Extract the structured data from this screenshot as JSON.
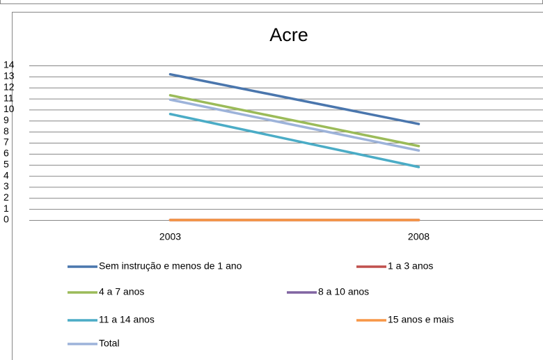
{
  "chart_data": {
    "type": "line",
    "title": "Acre",
    "categories": [
      "2003",
      "2008"
    ],
    "series": [
      {
        "name": "Sem instrução e menos de 1 ano",
        "color": "#4a76ad",
        "values": [
          13.2,
          8.7
        ]
      },
      {
        "name": "1 a 3 anos",
        "color": "#c0504d",
        "values": [
          0,
          0
        ]
      },
      {
        "name": "4 a 7 anos",
        "color": "#9bbb59",
        "values": [
          11.3,
          6.7
        ]
      },
      {
        "name": "8 a 10 anos",
        "color": "#8064a2",
        "values": [
          0,
          0
        ]
      },
      {
        "name": "11 a 14 anos",
        "color": "#4bacc6",
        "values": [
          9.6,
          4.8
        ]
      },
      {
        "name": "15 anos e mais",
        "color": "#f79646",
        "values": [
          0,
          0
        ]
      },
      {
        "name": "Total",
        "color": "#9db3da",
        "values": [
          10.9,
          6.3
        ]
      }
    ],
    "ylim": [
      0,
      14
    ],
    "yticks": [
      0,
      1,
      2,
      3,
      4,
      5,
      6,
      7,
      8,
      9,
      10,
      11,
      12,
      13,
      14
    ],
    "grid": true
  }
}
